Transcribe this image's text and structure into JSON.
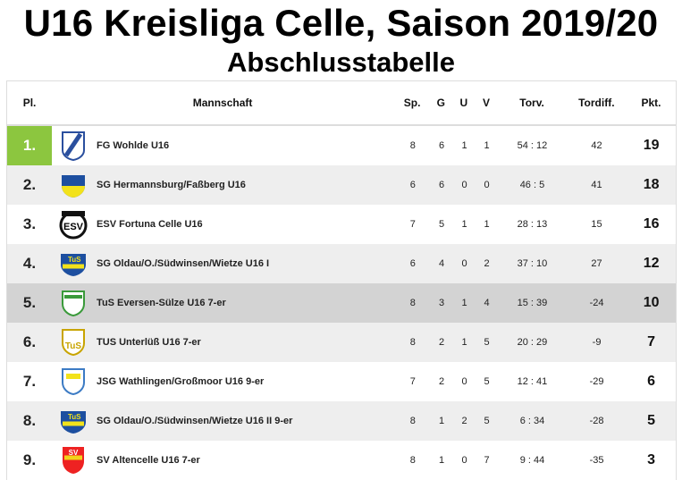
{
  "title": "U16 Kreisliga Celle, Saison 2019/20",
  "subtitle": "Abschlusstabelle",
  "colors": {
    "leader": "#8cc63f",
    "highlight": "#d3d3d3",
    "alt_row": "#eeeeee"
  },
  "headers": {
    "pl": "Pl.",
    "team": "Mannschaft",
    "sp": "Sp.",
    "g": "G",
    "u": "U",
    "v": "V",
    "torv": "Torv.",
    "tordiff": "Tordiff.",
    "pkt": "Pkt."
  },
  "rows": [
    {
      "pl": "1.",
      "team": "FG Wohlde U16",
      "logo": "fg-wohlde-crest",
      "sp": "8",
      "g": "6",
      "u": "1",
      "v": "1",
      "torv": "54 : 12",
      "tordiff": "42",
      "pkt": "19"
    },
    {
      "pl": "2.",
      "team": "SG Hermannsburg/Faßberg U16",
      "logo": "sg-hermannsburg-crest",
      "sp": "6",
      "g": "6",
      "u": "0",
      "v": "0",
      "torv": "46 : 5",
      "tordiff": "41",
      "pkt": "18"
    },
    {
      "pl": "3.",
      "team": "ESV Fortuna Celle U16",
      "logo": "esv-fortuna-crest",
      "sp": "7",
      "g": "5",
      "u": "1",
      "v": "1",
      "torv": "28 : 13",
      "tordiff": "15",
      "pkt": "16"
    },
    {
      "pl": "4.",
      "team": "SG Oldau/O./Südwinsen/Wietze U16 I",
      "logo": "tus-oldau-crest",
      "sp": "6",
      "g": "4",
      "u": "0",
      "v": "2",
      "torv": "37 : 10",
      "tordiff": "27",
      "pkt": "12"
    },
    {
      "pl": "5.",
      "team": "TuS Eversen-Sülze U16 7-er",
      "logo": "tus-eversen-crest",
      "sp": "8",
      "g": "3",
      "u": "1",
      "v": "4",
      "torv": "15 : 39",
      "tordiff": "-24",
      "pkt": "10"
    },
    {
      "pl": "6.",
      "team": "TUS Unterlüß U16 7-er",
      "logo": "tus-unterluess-crest",
      "sp": "8",
      "g": "2",
      "u": "1",
      "v": "5",
      "torv": "20 : 29",
      "tordiff": "-9",
      "pkt": "7"
    },
    {
      "pl": "7.",
      "team": "JSG Wathlingen/Großmoor U16 9-er",
      "logo": "jsg-wathlingen-crest",
      "sp": "7",
      "g": "2",
      "u": "0",
      "v": "5",
      "torv": "12 : 41",
      "tordiff": "-29",
      "pkt": "6"
    },
    {
      "pl": "8.",
      "team": "SG Oldau/O./Südwinsen/Wietze U16 II 9-er",
      "logo": "tus-oldau-crest",
      "sp": "8",
      "g": "1",
      "u": "2",
      "v": "5",
      "torv": "6 : 34",
      "tordiff": "-28",
      "pkt": "5"
    },
    {
      "pl": "9.",
      "team": "SV Altencelle U16 7-er",
      "logo": "sv-altencelle-crest",
      "sp": "8",
      "g": "1",
      "u": "0",
      "v": "7",
      "torv": "9 : 44",
      "tordiff": "-35",
      "pkt": "3"
    }
  ]
}
